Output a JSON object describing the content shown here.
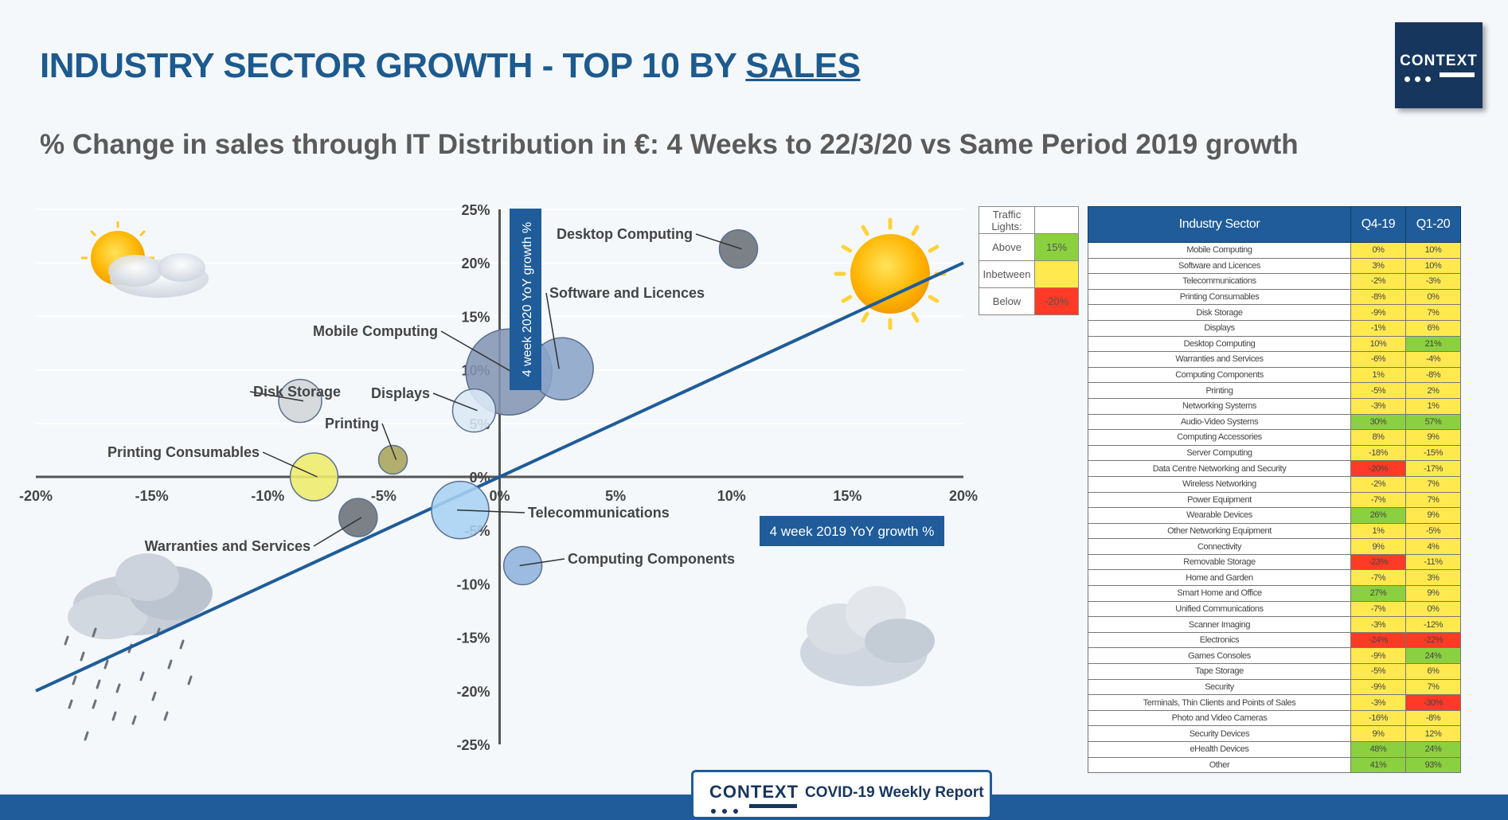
{
  "title_prefix": "INDUSTRY SECTOR GROWTH - TOP 10 BY ",
  "title_underlined": "SALES",
  "subtitle": "% Change in sales through IT Distribution in €: 4 Weeks to 22/3/20 vs Same Period 2019 growth",
  "logo_text": "CONTEXT",
  "footer": {
    "brand": "CONTEXT",
    "report": "COVID-19 Weekly Report"
  },
  "colors": {
    "accent": "#1f5c99",
    "green": "#8bd13f",
    "yellow": "#ffe94f",
    "red": "#ff3a26"
  },
  "icons": [
    "sun-behind-cloud-icon",
    "sun-icon",
    "rain-cloud-icon",
    "cloud-icon"
  ],
  "chart_data": {
    "type": "scatter",
    "xlabel": "4 week 2019 YoY growth %",
    "ylabel": "4 week 2020 YoY growth %",
    "xlim": [
      -20,
      20
    ],
    "ylim": [
      -25,
      25
    ],
    "xticks": [
      "-20%",
      "-15%",
      "-10%",
      "-5%",
      "0%",
      "5%",
      "10%",
      "15%",
      "20%"
    ],
    "yticks": [
      "25%",
      "20%",
      "15%",
      "10%",
      "5%",
      "0%",
      "-5%",
      "-10%",
      "-15%",
      "-20%",
      "-25%"
    ],
    "reference_line": "y = x",
    "points": [
      {
        "name": "Desktop Computing",
        "x": 10.3,
        "y": 21.3,
        "size": 0.8,
        "color": "#6b6f78"
      },
      {
        "name": "Software and Licences",
        "x": 2.7,
        "y": 10.1,
        "size": 1.3,
        "color": "#8aa3c8"
      },
      {
        "name": "Mobile Computing",
        "x": 0.4,
        "y": 9.8,
        "size": 1.8,
        "color": "#8595b3"
      },
      {
        "name": "Disk Storage",
        "x": -8.6,
        "y": 7.1,
        "size": 0.9,
        "color": "#d3d5d8"
      },
      {
        "name": "Displays",
        "x": -1.1,
        "y": 6.2,
        "size": 0.9,
        "color": "#dbe8f6"
      },
      {
        "name": "Printing",
        "x": -4.6,
        "y": 1.6,
        "size": 0.6,
        "color": "#a8a35a"
      },
      {
        "name": "Printing Consumables",
        "x": -8.0,
        "y": 0.0,
        "size": 1.0,
        "color": "#eeec6b"
      },
      {
        "name": "Warranties and Services",
        "x": -6.1,
        "y": -3.8,
        "size": 0.8,
        "color": "#6b6f78"
      },
      {
        "name": "Telecommunications",
        "x": -1.7,
        "y": -3.1,
        "size": 1.2,
        "color": "#a7d2f2"
      },
      {
        "name": "Computing Components",
        "x": 1.0,
        "y": -8.3,
        "size": 0.8,
        "color": "#8eb2dc"
      }
    ]
  },
  "legend": {
    "header": "Traffic Lights:",
    "rows": [
      {
        "label": "Above",
        "value": "15%",
        "color": "green"
      },
      {
        "label": "Inbetween",
        "value": "",
        "color": "yellow"
      },
      {
        "label": "Below",
        "value": "-20%",
        "color": "red"
      }
    ]
  },
  "table": {
    "headers": [
      "Industry Sector",
      "Q4-19",
      "Q1-20"
    ],
    "rows": [
      [
        "Mobile Computing",
        "0%",
        "10%"
      ],
      [
        "Software and Licences",
        "3%",
        "10%"
      ],
      [
        "Telecommunications",
        "-2%",
        "-3%"
      ],
      [
        "Printing Consumables",
        "-8%",
        "0%"
      ],
      [
        "Disk Storage",
        "-9%",
        "7%"
      ],
      [
        "Displays",
        "-1%",
        "6%"
      ],
      [
        "Desktop Computing",
        "10%",
        "21%"
      ],
      [
        "Warranties and Services",
        "-6%",
        "-4%"
      ],
      [
        "Computing Components",
        "1%",
        "-8%"
      ],
      [
        "Printing",
        "-5%",
        "2%"
      ],
      [
        "Networking Systems",
        "-3%",
        "1%"
      ],
      [
        "Audio-Video Systems",
        "30%",
        "57%"
      ],
      [
        "Computing Accessories",
        "8%",
        "9%"
      ],
      [
        "Server Computing",
        "-18%",
        "-15%"
      ],
      [
        "Data Centre Networking and Security",
        "-20%",
        "-17%"
      ],
      [
        "Wireless Networking",
        "-2%",
        "7%"
      ],
      [
        "Power Equipment",
        "-7%",
        "7%"
      ],
      [
        "Wearable Devices",
        "26%",
        "9%"
      ],
      [
        "Other Networking Equipment",
        "1%",
        "-5%"
      ],
      [
        "Connectivity",
        "9%",
        "4%"
      ],
      [
        "Removable Storage",
        "-23%",
        "-11%"
      ],
      [
        "Home and Garden",
        "-7%",
        "3%"
      ],
      [
        "Smart Home and Office",
        "27%",
        "9%"
      ],
      [
        "Unified Communications",
        "-7%",
        "0%"
      ],
      [
        "Scanner Imaging",
        "-3%",
        "-12%"
      ],
      [
        "Electronics",
        "-24%",
        "-22%"
      ],
      [
        "Games Consoles",
        "-9%",
        "24%"
      ],
      [
        "Tape Storage",
        "-5%",
        "6%"
      ],
      [
        "Security",
        "-9%",
        "7%"
      ],
      [
        "Terminals, Thin Clients and Points of Sales",
        "-3%",
        "-30%"
      ],
      [
        "Photo and Video Cameras",
        "-16%",
        "-8%"
      ],
      [
        "Security Devices",
        "9%",
        "12%"
      ],
      [
        "eHealth Devices",
        "48%",
        "24%"
      ],
      [
        "Other",
        "41%",
        "93%"
      ]
    ]
  }
}
